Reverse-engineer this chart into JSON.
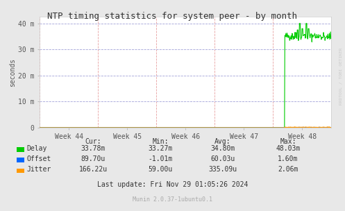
{
  "title": "NTP timing statistics for system peer - by month",
  "ylabel": "seconds",
  "watermark": "RRDTOOL / TOBI OETIKER",
  "munin_version": "Munin 2.0.37-1ubuntu0.1",
  "last_update": "Last update: Fri Nov 29 01:05:26 2024",
  "background_color": "#e8e8e8",
  "plot_bg_color": "#ffffff",
  "ytick_labels": [
    "0",
    "10 m",
    "20 m",
    "30 m",
    "40 m"
  ],
  "ytick_values": [
    0,
    0.01,
    0.02,
    0.03,
    0.04
  ],
  "ylim": [
    0,
    0.0425
  ],
  "xtick_labels": [
    "Week 44",
    "Week 45",
    "Week 46",
    "Week 47",
    "Week 48"
  ],
  "legend": [
    {
      "label": "Delay",
      "color": "#00cc00"
    },
    {
      "label": "Offset",
      "color": "#0066ff"
    },
    {
      "label": "Jitter",
      "color": "#ff9900"
    }
  ],
  "stats_headers": [
    "Cur:",
    "Min:",
    "Avg:",
    "Max:"
  ],
  "stats": [
    {
      "name": "Delay",
      "cur": "33.78m",
      "min": "33.27m",
      "avg": "34.80m",
      "max": "48.03m"
    },
    {
      "name": "Offset",
      "cur": "89.70u",
      "min": "-1.01m",
      "avg": "60.03u",
      "max": "1.60m"
    },
    {
      "name": "Jitter",
      "cur": "166.22u",
      "min": "59.00u",
      "avg": "335.09u",
      "max": "2.06m"
    }
  ],
  "delay_color": "#00cc00",
  "offset_color": "#0066ff",
  "jitter_color": "#ff9900"
}
